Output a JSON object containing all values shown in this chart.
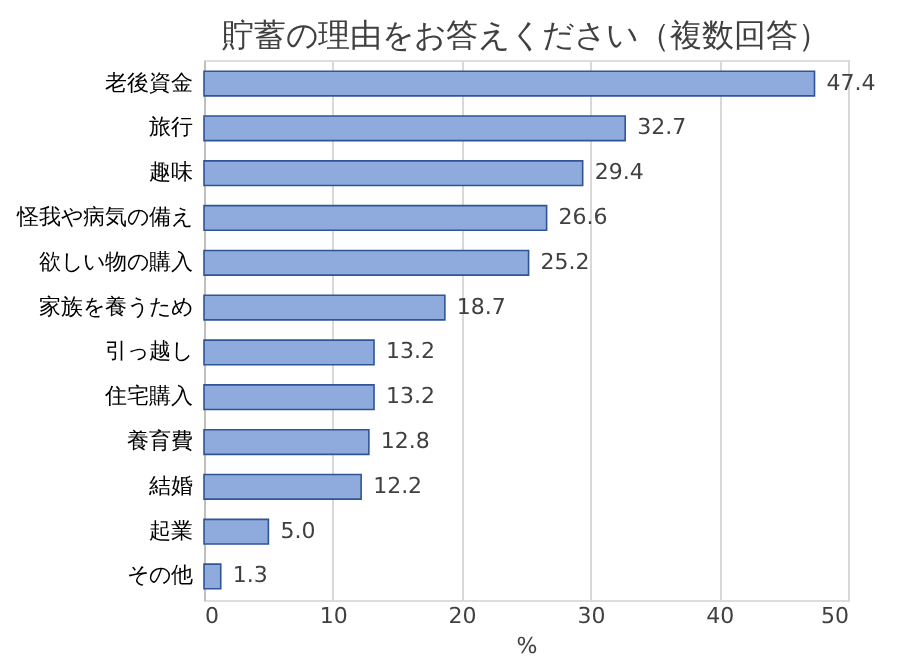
{
  "chart_data": {
    "type": "bar",
    "orientation": "horizontal",
    "title": "貯蓄の理由をお答えください（複数回答）",
    "xlabel": "%",
    "categories": [
      "老後資金",
      "旅行",
      "趣味",
      "怪我や病気の備え",
      "欲しい物の購入",
      "家族を養うため",
      "引っ越し",
      "住宅購入",
      "養育費",
      "結婚",
      "起業",
      "その他"
    ],
    "values": [
      47.4,
      32.7,
      29.4,
      26.6,
      25.2,
      18.7,
      13.2,
      13.2,
      12.8,
      12.2,
      5.0,
      1.3
    ],
    "value_labels": [
      "47.4",
      "32.7",
      "29.4",
      "26.6",
      "25.2",
      "18.7",
      "13.2",
      "13.2",
      "12.8",
      "12.2",
      "5.0",
      "1.3"
    ],
    "color": "#8faadc",
    "xlim": [
      0,
      50
    ],
    "xticks": [
      0,
      10,
      20,
      30,
      40,
      50
    ],
    "grid": "x"
  }
}
